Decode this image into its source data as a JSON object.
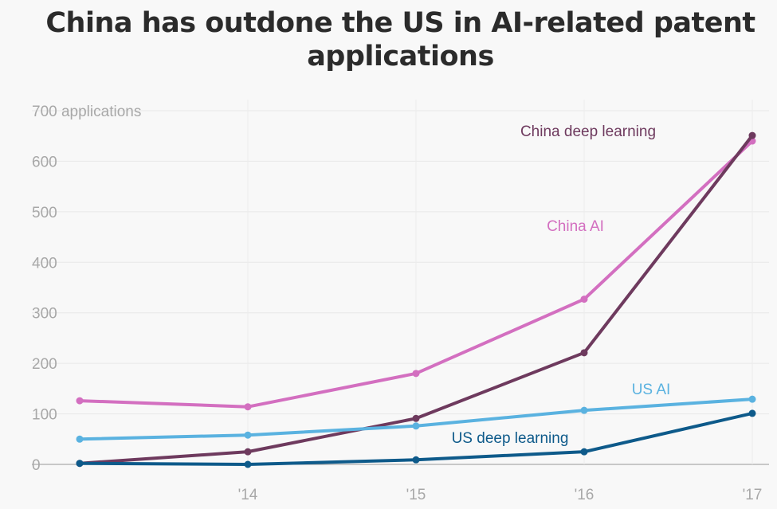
{
  "chart_data": {
    "type": "line",
    "title": "China has outdone the US in AI-related patent applications",
    "x": [
      2013,
      2014,
      2015,
      2016,
      2017
    ],
    "x_tick_labels": [
      "",
      "'14",
      "'15",
      "'16",
      "'17"
    ],
    "ylim": [
      0,
      700
    ],
    "y_ticks": [
      0,
      100,
      200,
      300,
      400,
      500,
      600,
      700
    ],
    "y_tick_labels": [
      "0",
      "100",
      "200",
      "300",
      "400",
      "500",
      "600",
      "700 applications"
    ],
    "grid": true,
    "series": [
      {
        "name": "China AI",
        "color": "#d36fc0",
        "values": [
          126,
          114,
          180,
          327,
          640
        ]
      },
      {
        "name": "China deep learning",
        "color": "#6e3a5e",
        "values": [
          2,
          25,
          91,
          221,
          651
        ]
      },
      {
        "name": "US AI",
        "color": "#5ab2e0",
        "values": [
          50,
          58,
          76,
          107,
          129
        ]
      },
      {
        "name": "US deep learning",
        "color": "#0e5a8a",
        "values": [
          2,
          0,
          9,
          25,
          101
        ]
      }
    ]
  }
}
